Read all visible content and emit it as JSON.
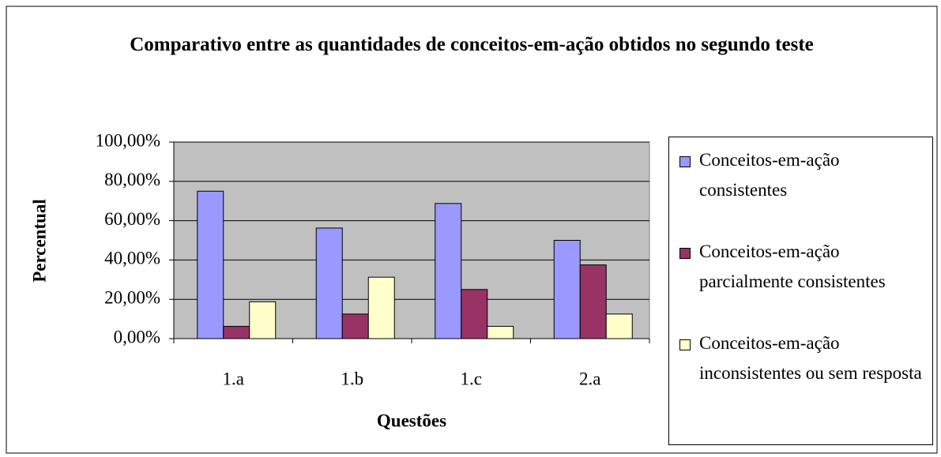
{
  "chart_data": {
    "type": "bar",
    "title": "Comparativo entre as quantidades de conceitos-em-ação obtidos no segundo teste",
    "x_label": "Questões",
    "y_label": "Percentual",
    "categories": [
      "1.a",
      "1.b",
      "1.c",
      "2.a"
    ],
    "series": [
      {
        "name": "Conceitos-em-ação consistentes",
        "color": "#9999ff",
        "values": [
          75,
          56.25,
          68.75,
          50
        ]
      },
      {
        "name": "Conceitos-em-ação parcialmente consistentes",
        "color": "#993366",
        "values": [
          6.25,
          12.5,
          25,
          37.5
        ]
      },
      {
        "name": "Conceitos-em-ação inconsistentes ou sem resposta",
        "color": "#ffffcc",
        "values": [
          18.75,
          31.25,
          6.25,
          12.5
        ]
      }
    ],
    "ylim": [
      0,
      100
    ],
    "yticks": [
      {
        "value": 0,
        "label": "0,00%"
      },
      {
        "value": 20,
        "label": "20,00%"
      },
      {
        "value": 40,
        "label": "40,00%"
      },
      {
        "value": 60,
        "label": "60,00%"
      },
      {
        "value": 80,
        "label": "80,00%"
      },
      {
        "value": 100,
        "label": "100,00%"
      }
    ],
    "grid": true,
    "legend": "right"
  }
}
